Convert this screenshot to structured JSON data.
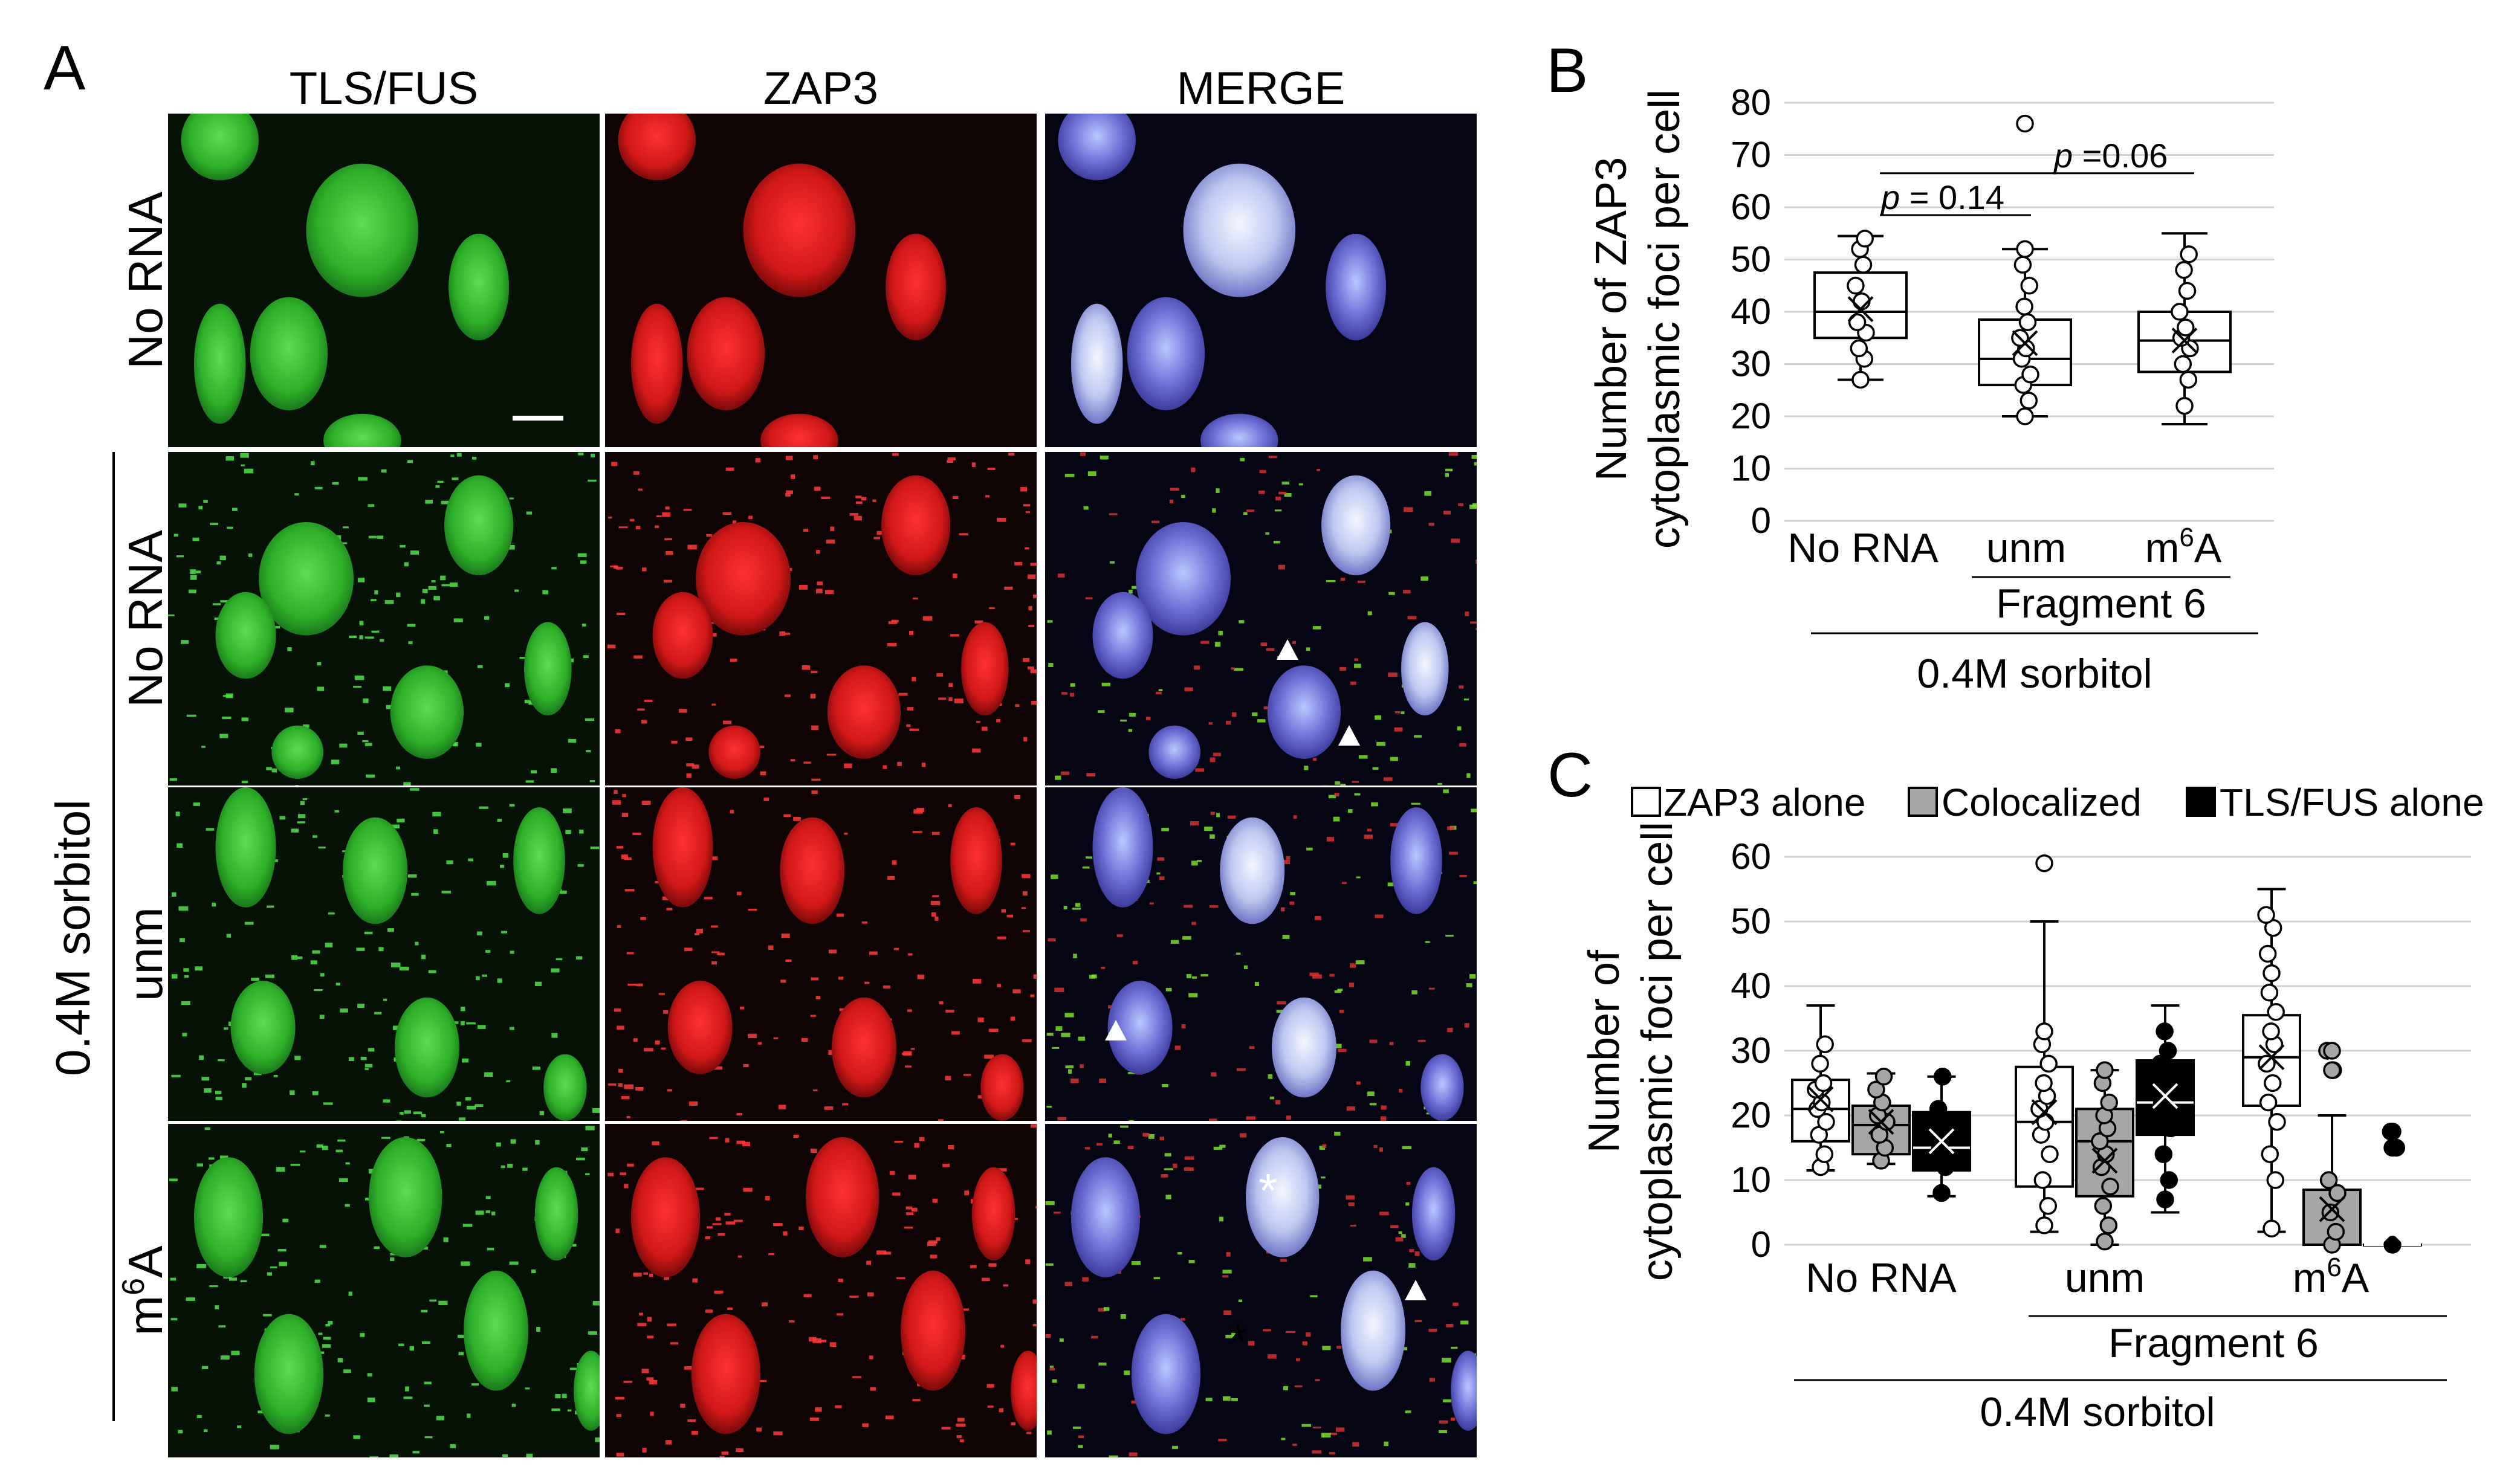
{
  "panelA": {
    "label": "A",
    "columns": [
      "TLS/FUS",
      "ZAP3",
      "MERGE"
    ],
    "rows": [
      {
        "label": "No RNA"
      },
      {
        "label": "No RNA"
      },
      {
        "label": "unm"
      },
      {
        "label_base": "m",
        "label_sup": "6",
        "label_tail": "A"
      }
    ],
    "group_label": "0.4M sorbitol",
    "asterisk": "*",
    "colors": {
      "green": "#1f9a2a",
      "red": "#c21010",
      "blue": "#3f3fb5"
    }
  },
  "panelB": {
    "label": "B",
    "ylabel_line1": "Number of ZAP3",
    "ylabel_line2": "cytoplasmic foci per cell",
    "cat1": "No RNA",
    "cat2": "unm",
    "cat3_base": "m",
    "cat3_sup": "6",
    "cat3_tail": "A",
    "fragment_label": "Fragment 6",
    "condition_label": "0.4M sorbitol",
    "p1_italic": "p",
    "p1_rest": " = 0.14",
    "p2_italic": "p",
    "p2_rest": " =0.06"
  },
  "panelC": {
    "label": "C",
    "legend": [
      "ZAP3 alone",
      "Colocalized",
      "TLS/FUS alone"
    ],
    "ylabel_line1": "Number of",
    "ylabel_line2": "cytoplasmic foci per cell",
    "cat1": "No RNA",
    "cat2": "unm",
    "cat3_base": "m",
    "cat3_sup": "6",
    "cat3_tail": "A",
    "fragment_label": "Fragment 6",
    "condition_label": "0.4M sorbitol"
  },
  "chart_data": [
    {
      "type": "box",
      "title": "",
      "xlabel": "",
      "ylabel": "Number of ZAP3 cytoplasmic foci per cell",
      "ylim": [
        0,
        80
      ],
      "yticks": [
        0,
        10,
        20,
        30,
        40,
        50,
        60,
        70,
        80
      ],
      "grid": true,
      "categories": [
        "No RNA",
        "unm",
        "m6A"
      ],
      "series": [
        {
          "boxes": [
            {
              "min": 27,
              "q1": 35,
              "median": 40,
              "q3": 47.5,
              "max": 54.5,
              "mean": 40.5,
              "outliers": [],
              "points": [
                27,
                31,
                33,
                36,
                38,
                42,
                45,
                49,
                52,
                54
              ]
            },
            {
              "min": 20,
              "q1": 26,
              "median": 31,
              "q3": 38.5,
              "max": 52,
              "mean": 34,
              "outliers": [
                76
              ],
              "points": [
                20,
                23,
                26,
                28,
                31,
                33,
                35,
                38,
                41,
                45,
                49,
                52
              ]
            },
            {
              "min": 18.5,
              "q1": 28.5,
              "median": 34.5,
              "q3": 40,
              "max": 55,
              "mean": 34.5,
              "outliers": [],
              "points": [
                22,
                27,
                30,
                33,
                35,
                37,
                40,
                44,
                48,
                51
              ]
            }
          ]
        }
      ],
      "annotations": [
        "p = 0.14",
        "p =0.06"
      ]
    },
    {
      "type": "box",
      "title": "",
      "xlabel": "",
      "ylabel": "Number of cytoplasmic foci per cell",
      "ylim": [
        0,
        60
      ],
      "yticks": [
        0,
        10,
        20,
        30,
        40,
        50,
        60
      ],
      "grid": true,
      "legend_position": "top",
      "categories": [
        "No RNA",
        "unm",
        "m6A"
      ],
      "series": [
        {
          "name": "ZAP3 alone",
          "fill": "#ffffff",
          "boxes": [
            {
              "min": 11.5,
              "q1": 16,
              "median": 21,
              "q3": 25.5,
              "max": 37,
              "mean": 22.5,
              "outliers": [],
              "points": [
                12,
                14,
                17,
                19,
                21,
                22,
                24,
                25,
                28,
                31
              ]
            },
            {
              "min": 2,
              "q1": 9,
              "median": 19,
              "q3": 27.5,
              "max": 50,
              "mean": 20.5,
              "outliers": [
                59
              ],
              "points": [
                3,
                6,
                10,
                14,
                17,
                19,
                21,
                23,
                25,
                28,
                31,
                33
              ]
            },
            {
              "min": 2,
              "q1": 21.5,
              "median": 29,
              "q3": 35.5,
              "max": 55,
              "mean": 29,
              "outliers": [],
              "points": [
                2.5,
                10,
                14,
                19,
                22,
                25,
                28,
                31,
                33,
                36,
                39,
                42,
                45,
                49,
                51
              ]
            }
          ]
        },
        {
          "name": "Colocalized",
          "fill": "#a6a6a6",
          "boxes": [
            {
              "min": 12.5,
              "q1": 14,
              "median": 18.5,
              "q3": 21.5,
              "max": 26.5,
              "mean": 19,
              "outliers": [],
              "points": [
                13,
                15,
                17,
                19,
                20,
                22,
                24,
                26
              ]
            },
            {
              "min": 0,
              "q1": 7.5,
              "median": 16,
              "q3": 21,
              "max": 27,
              "mean": 13,
              "outliers": [],
              "points": [
                0.5,
                3,
                6,
                9,
                12,
                14,
                16,
                18,
                20,
                22,
                25,
                27
              ]
            },
            {
              "min": 0,
              "q1": 0,
              "median": 0,
              "q3": 8.5,
              "max": 20,
              "mean": 5.5,
              "outliers": [
                27,
                30
              ],
              "points": [
                0,
                2,
                5,
                8,
                10,
                27,
                30
              ]
            }
          ]
        },
        {
          "name": "TLS/FUS alone",
          "fill": "#000000",
          "boxes": [
            {
              "min": 7.5,
              "q1": 11.5,
              "median": 15,
              "q3": 20.5,
              "max": 26,
              "mean": 16,
              "outliers": [],
              "points": [
                8,
                12,
                15,
                18,
                21,
                26
              ]
            },
            {
              "min": 5,
              "q1": 17,
              "median": 22,
              "q3": 28.5,
              "max": 37,
              "mean": 23,
              "outliers": [],
              "points": [
                7,
                10,
                14,
                18,
                22,
                25,
                28,
                30,
                33
              ]
            },
            {
              "min": 0,
              "q1": 0,
              "median": 0,
              "q3": 0,
              "max": 0,
              "mean": 2,
              "outliers": [
                15,
                17.5
              ],
              "points": [
                0,
                15,
                17.5
              ]
            }
          ]
        }
      ]
    }
  ]
}
